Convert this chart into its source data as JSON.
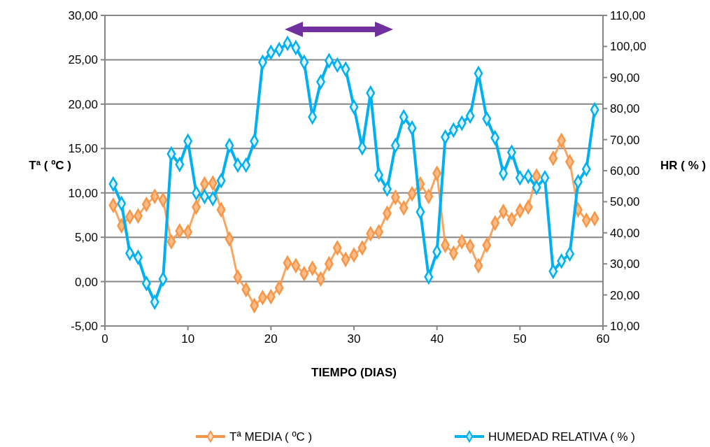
{
  "chart_data": {
    "type": "line",
    "xlabel": "TIEMPO (DIAS)",
    "ylabel": "Tª ( ºC )",
    "y2label": "HR ( % )",
    "x": [
      1,
      2,
      3,
      4,
      5,
      6,
      7,
      8,
      9,
      10,
      11,
      12,
      13,
      14,
      15,
      16,
      17,
      18,
      19,
      20,
      21,
      22,
      23,
      24,
      25,
      26,
      27,
      28,
      29,
      30,
      31,
      32,
      33,
      34,
      35,
      36,
      37,
      38,
      39,
      40,
      41,
      42,
      43,
      44,
      45,
      46,
      47,
      48,
      49,
      50,
      51,
      52,
      53,
      54,
      55,
      56,
      57,
      58,
      59
    ],
    "series": [
      {
        "name": "Tª MEDIA ( ºC )",
        "color": "#f79646",
        "values": [
          8.6,
          6.3,
          7.3,
          7.4,
          8.7,
          9.6,
          9.2,
          4.5,
          5.7,
          5.6,
          8.4,
          11.0,
          11.1,
          8.1,
          4.8,
          0.5,
          -0.9,
          -2.7,
          -1.8,
          -1.7,
          -0.7,
          2.1,
          1.8,
          0.9,
          1.5,
          0.3,
          2.0,
          3.8,
          2.5,
          3.0,
          3.8,
          5.4,
          5.6,
          7.7,
          9.5,
          8.3,
          9.9,
          11.0,
          9.6,
          12.2,
          4.1,
          3.2,
          4.5,
          4.0,
          1.8,
          4.1,
          6.6,
          7.9,
          7.0,
          8.0,
          8.4,
          11.9,
          null,
          13.9,
          15.9,
          13.5,
          8.1,
          6.9,
          7.1
        ]
      },
      {
        "name": "HUMEDAD RELATIVA ( % )",
        "color": "#00b0f0",
        "axis": "y2",
        "values": [
          55.7,
          49.4,
          33.4,
          32.1,
          23.7,
          17.7,
          25.1,
          65.4,
          62.0,
          69.5,
          52.8,
          51.7,
          51.0,
          56.8,
          68.1,
          61.8,
          61.8,
          69.5,
          94.9,
          98.1,
          99.0,
          101.0,
          99.6,
          94.9,
          77.3,
          88.6,
          95.4,
          94.0,
          92.7,
          80.5,
          67.4,
          85.0,
          58.6,
          54.1,
          68.1,
          77.3,
          73.7,
          46.7,
          25.8,
          33.9,
          70.8,
          73.1,
          75.3,
          77.6,
          91.3,
          76.7,
          70.6,
          59.1,
          65.9,
          57.7,
          58.2,
          54.6,
          57.7,
          27.6,
          30.9,
          33.2,
          56.4,
          60.5,
          79.6
        ]
      }
    ],
    "xlim": [
      0,
      60
    ],
    "xticks": [
      0,
      10,
      20,
      30,
      40,
      50,
      60
    ],
    "ylim": [
      -5,
      30
    ],
    "yticks": [
      {
        "value": -5,
        "label": "-5,00"
      },
      {
        "value": 0,
        "label": "0,00"
      },
      {
        "value": 5,
        "label": "5,00"
      },
      {
        "value": 10,
        "label": "10,00"
      },
      {
        "value": 15,
        "label": "15,00"
      },
      {
        "value": 20,
        "label": "20,00"
      },
      {
        "value": 25,
        "label": "25,00"
      },
      {
        "value": 30,
        "label": "30,00"
      }
    ],
    "y2lim": [
      10,
      110
    ],
    "y2ticks": [
      {
        "value": 10,
        "label": "10,00"
      },
      {
        "value": 20,
        "label": "20,00"
      },
      {
        "value": 30,
        "label": "30,00"
      },
      {
        "value": 40,
        "label": "40,00"
      },
      {
        "value": 50,
        "label": "50,00"
      },
      {
        "value": 60,
        "label": "60,00"
      },
      {
        "value": 70,
        "label": "70,00"
      },
      {
        "value": 80,
        "label": "80,00"
      },
      {
        "value": 90,
        "label": "90,00"
      },
      {
        "value": 100,
        "label": "100,00"
      },
      {
        "value": 110,
        "label": "110,00"
      }
    ],
    "grid": "y",
    "legend": "bottom",
    "marker": "diamond",
    "line_style": "solid"
  }
}
